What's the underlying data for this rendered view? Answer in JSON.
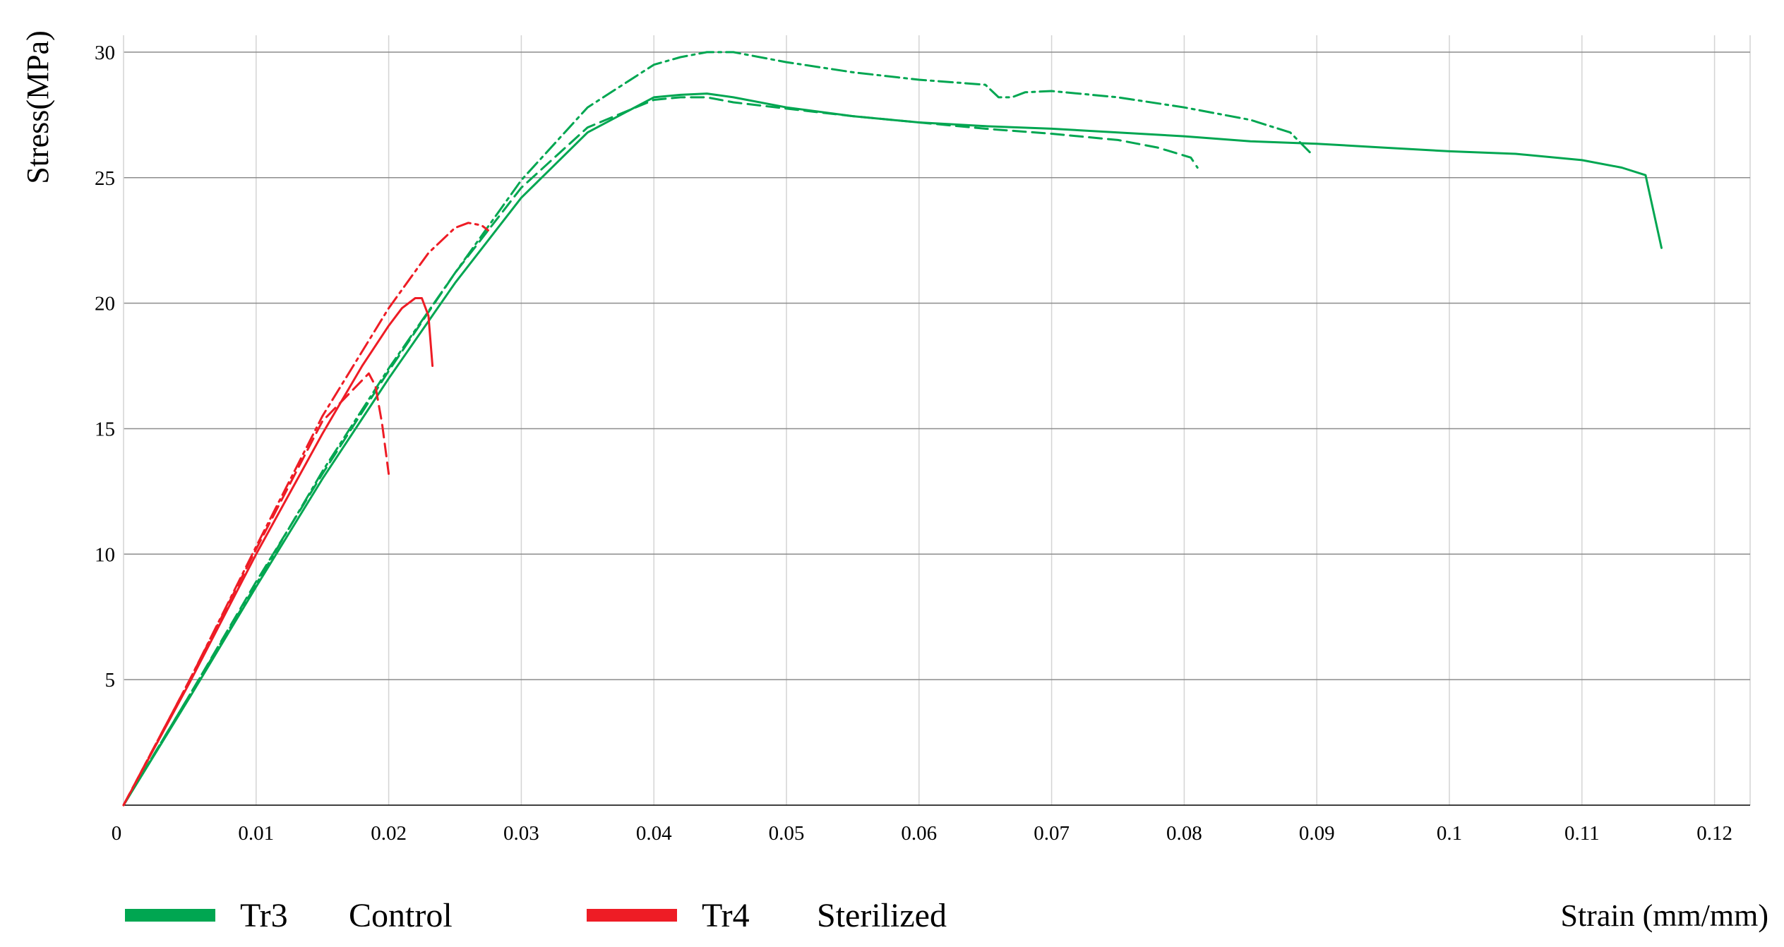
{
  "chart_data": {
    "type": "line",
    "title": "",
    "xlabel": "Strain (mm/mm)",
    "ylabel": "Stress(MPa)",
    "xlim": [
      0,
      0.123
    ],
    "ylim": [
      0,
      30
    ],
    "x_ticks": [
      "0",
      "0.01",
      "0.02",
      "0.03",
      "0.04",
      "0.05",
      "0.06",
      "0.07",
      "0.08",
      "0.09",
      "0.1",
      "0.11",
      "0.12"
    ],
    "y_ticks": [
      "5",
      "10",
      "15",
      "20",
      "25",
      "30"
    ],
    "grid": true,
    "legend_placement": "bottom",
    "legend": [
      {
        "code": "Tr3",
        "label": "Control",
        "color": "#00a651"
      },
      {
        "code": "Tr4",
        "label": "Sterilized",
        "color": "#ee1c25"
      }
    ],
    "series": [
      {
        "group": "Tr3",
        "color": "#00a651",
        "style": "solid",
        "x": [
          0,
          0.005,
          0.01,
          0.015,
          0.02,
          0.025,
          0.03,
          0.035,
          0.04,
          0.042,
          0.044,
          0.046,
          0.05,
          0.055,
          0.06,
          0.065,
          0.07,
          0.075,
          0.08,
          0.085,
          0.09,
          0.095,
          0.1,
          0.105,
          0.11,
          0.113,
          0.1148,
          0.116
        ],
        "y": [
          0,
          4.3,
          8.7,
          13.0,
          17.0,
          20.8,
          24.2,
          26.8,
          28.2,
          28.3,
          28.35,
          28.2,
          27.8,
          27.45,
          27.2,
          27.05,
          26.95,
          26.8,
          26.65,
          26.45,
          26.35,
          26.2,
          26.05,
          25.95,
          25.7,
          25.4,
          25.1,
          22.2
        ]
      },
      {
        "group": "Tr3",
        "color": "#00a651",
        "style": "dashed",
        "x": [
          0,
          0.005,
          0.01,
          0.015,
          0.02,
          0.025,
          0.03,
          0.035,
          0.04,
          0.042,
          0.044,
          0.046,
          0.05,
          0.055,
          0.06,
          0.065,
          0.07,
          0.075,
          0.078,
          0.0805,
          0.081
        ],
        "y": [
          0,
          4.4,
          8.9,
          13.2,
          17.3,
          21.2,
          24.6,
          27.0,
          28.1,
          28.2,
          28.2,
          28.0,
          27.75,
          27.45,
          27.2,
          26.95,
          26.75,
          26.5,
          26.2,
          25.8,
          25.4
        ]
      },
      {
        "group": "Tr3",
        "color": "#00a651",
        "style": "dashdot",
        "x": [
          0,
          0.005,
          0.01,
          0.015,
          0.02,
          0.025,
          0.03,
          0.035,
          0.04,
          0.042,
          0.044,
          0.046,
          0.05,
          0.055,
          0.06,
          0.065,
          0.066,
          0.067,
          0.068,
          0.07,
          0.075,
          0.08,
          0.085,
          0.088,
          0.0895
        ],
        "y": [
          0,
          4.4,
          8.8,
          13.3,
          17.4,
          21.2,
          24.9,
          27.8,
          29.5,
          29.8,
          30.0,
          30.0,
          29.6,
          29.2,
          28.9,
          28.7,
          28.2,
          28.2,
          28.4,
          28.45,
          28.2,
          27.8,
          27.3,
          26.8,
          26.0
        ]
      },
      {
        "group": "Tr4",
        "color": "#ee1c25",
        "style": "solid",
        "x": [
          0,
          0.005,
          0.01,
          0.015,
          0.018,
          0.02,
          0.021,
          0.022,
          0.0225,
          0.023,
          0.0233
        ],
        "y": [
          0,
          4.9,
          10.0,
          14.8,
          17.5,
          19.1,
          19.8,
          20.2,
          20.2,
          19.5,
          17.5
        ]
      },
      {
        "group": "Tr4",
        "color": "#ee1c25",
        "style": "dashed",
        "x": [
          0,
          0.005,
          0.01,
          0.015,
          0.0185,
          0.019,
          0.0195,
          0.02
        ],
        "y": [
          0,
          5.0,
          10.2,
          15.3,
          17.2,
          16.7,
          15.2,
          13.2
        ]
      },
      {
        "group": "Tr4",
        "color": "#ee1c25",
        "style": "dashdot",
        "x": [
          0,
          0.005,
          0.01,
          0.015,
          0.02,
          0.023,
          0.025,
          0.026,
          0.027,
          0.0275
        ],
        "y": [
          0,
          5.0,
          10.3,
          15.5,
          19.8,
          22.0,
          23.0,
          23.2,
          23.1,
          22.9
        ]
      }
    ]
  }
}
